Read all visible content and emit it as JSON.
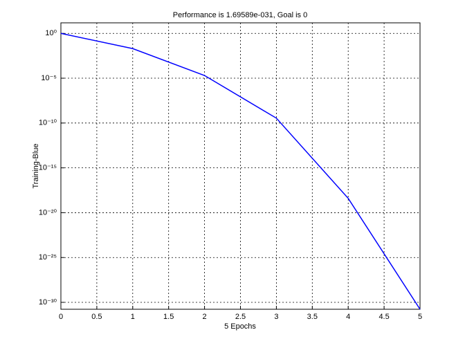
{
  "chart_data": {
    "type": "line",
    "title": "Performance is 1.69589e-031, Goal is 0",
    "x_label": "5 Epochs",
    "y_label": "Training-Blue",
    "x": [
      0,
      1,
      2,
      3,
      4,
      5
    ],
    "series": [
      {
        "name": "Training",
        "color": "#0000ff",
        "values": [
          1,
          0.02,
          2e-05,
          3.5e-10,
          4e-19,
          1.69589e-31
        ]
      }
    ],
    "xlim": [
      0,
      5
    ],
    "xticks": [
      0,
      0.5,
      1,
      1.5,
      2,
      2.5,
      3,
      3.5,
      4,
      4.5,
      5
    ],
    "ylim": [
      1.69589e-31,
      15
    ],
    "log_y": true,
    "yticks": [
      {
        "value": 1,
        "label": "10⁰"
      },
      {
        "value": 1e-05,
        "label": "10⁻⁵"
      },
      {
        "value": 1e-10,
        "label": "10⁻¹⁰"
      },
      {
        "value": 1e-15,
        "label": "10⁻¹⁵"
      },
      {
        "value": 1e-20,
        "label": "10⁻²⁰"
      },
      {
        "value": 1e-25,
        "label": "10⁻²⁵"
      },
      {
        "value": 1e-30,
        "label": "10⁻³⁰"
      }
    ],
    "grid": true
  }
}
